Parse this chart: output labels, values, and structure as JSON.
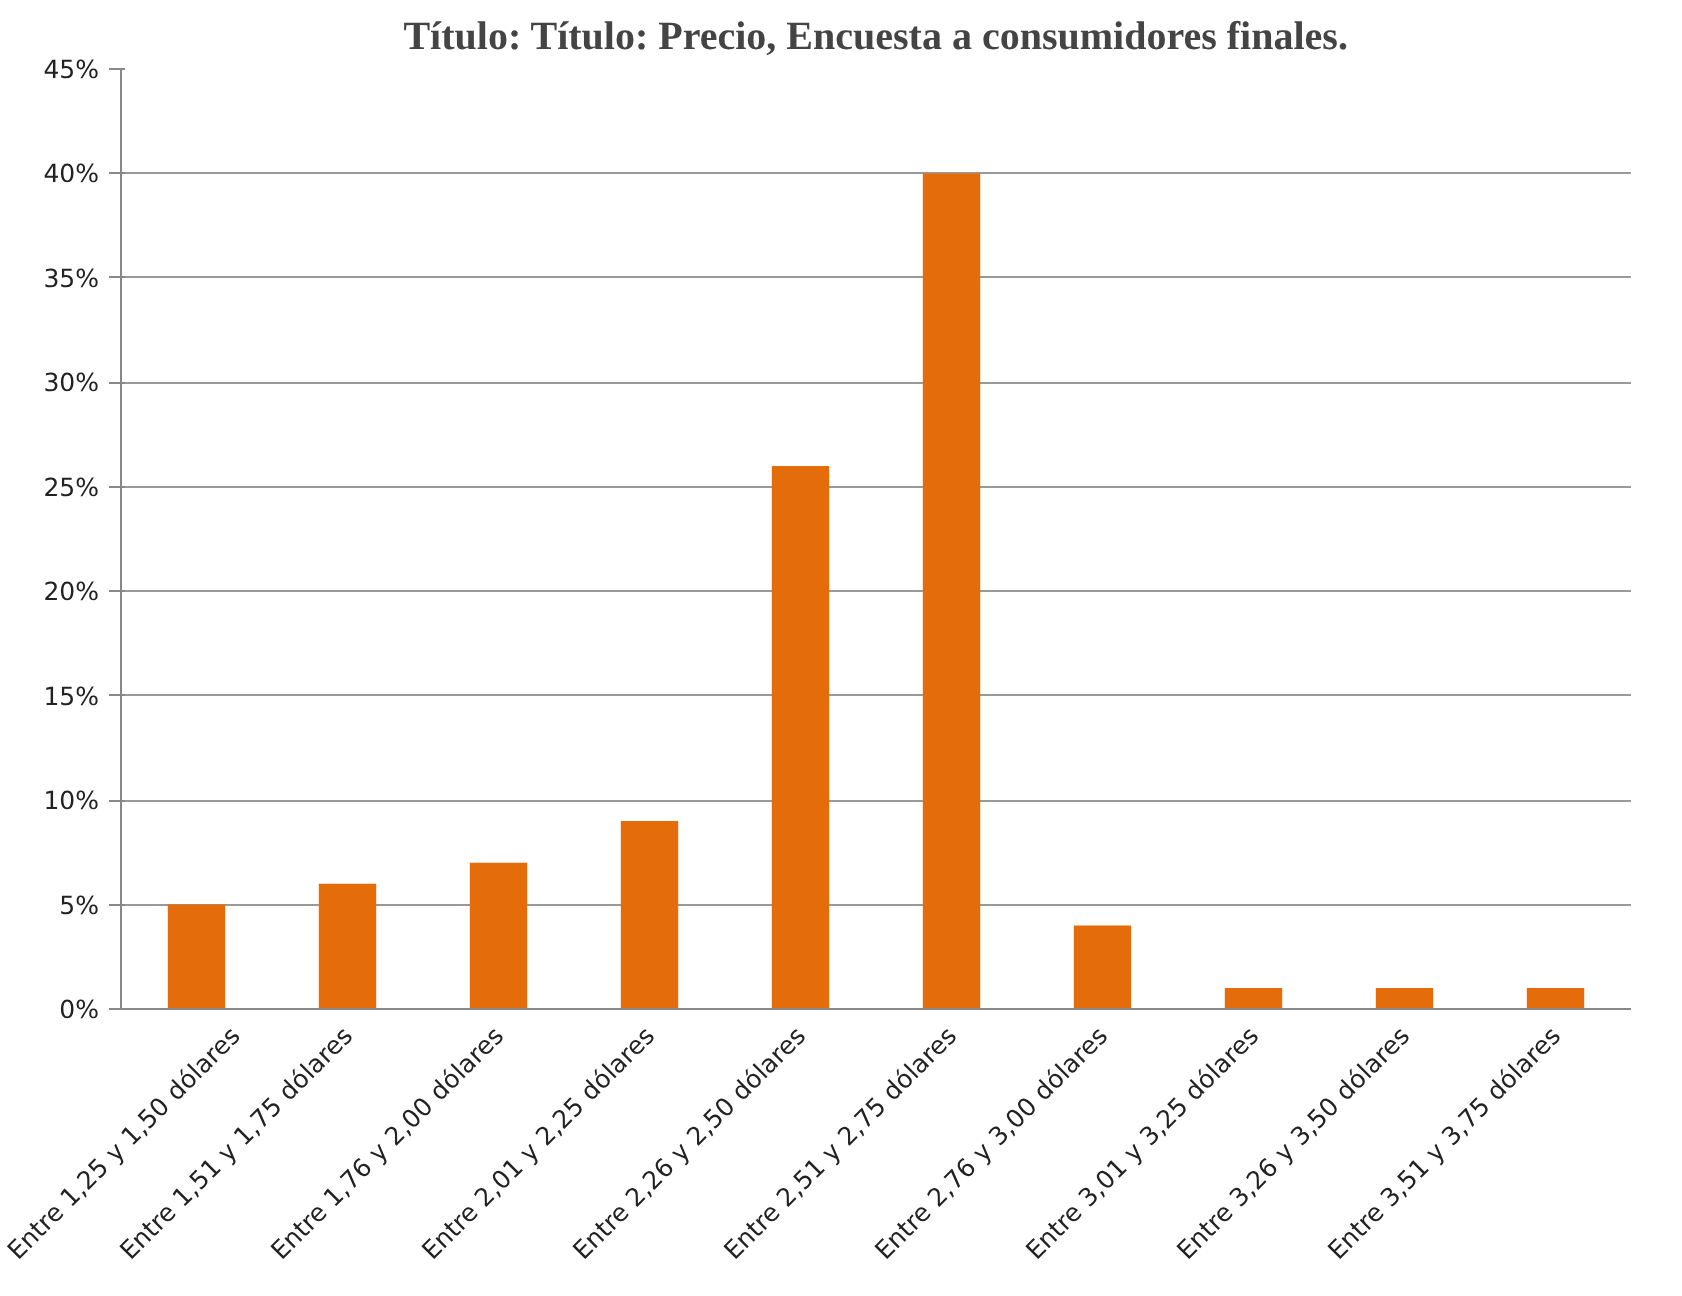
{
  "chart_data": {
    "type": "bar",
    "title": "Título: Título: Precio, Encuesta a consumidores finales.",
    "categories": [
      "Entre 1,25 y 1,50 dólares",
      "Entre 1,51 y 1,75 dólares",
      "Entre 1,76 y 2,00 dólares",
      "Entre 2,01 y 2,25 dólares",
      "Entre 2,26 y 2,50 dólares",
      "Entre 2,51 y 2,75 dólares",
      "Entre 2,76 y 3,00 dólares",
      "Entre 3,01 y 3,25 dólares",
      "Entre 3,26 y 3,50 dólares",
      "Entre 3,51 y 3,75 dólares"
    ],
    "values": [
      5,
      6,
      7,
      9,
      26,
      40,
      4,
      1,
      1,
      1
    ],
    "color": "#e46c0a",
    "ylim": [
      0,
      45
    ],
    "yticks": [
      {
        "value": 0,
        "label": "0%"
      },
      {
        "value": 5,
        "label": "5%"
      },
      {
        "value": 10,
        "label": "10%"
      },
      {
        "value": 15,
        "label": "15%"
      },
      {
        "value": 20,
        "label": "20%"
      },
      {
        "value": 25,
        "label": "25%"
      },
      {
        "value": 30,
        "label": "30%"
      },
      {
        "value": 35,
        "label": "35%"
      },
      {
        "value": 40,
        "label": "40%"
      },
      {
        "value": 45,
        "label": "45%"
      }
    ],
    "grid": "y"
  }
}
